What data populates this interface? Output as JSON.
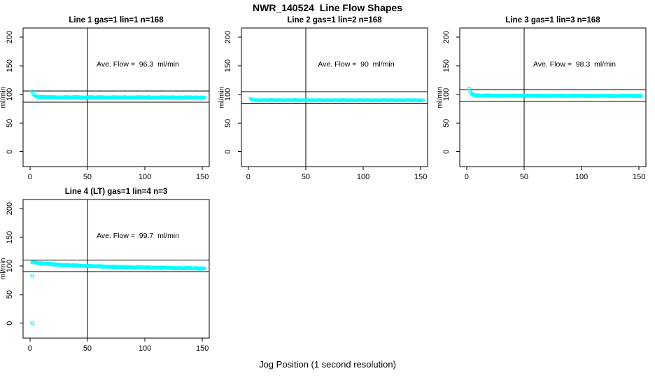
{
  "chart_data": {
    "type": "scatter",
    "title": "NWR_140524  Line Flow Shapes",
    "xlabel": "Jog Position (1 second resolution)",
    "ylabel": "ml/min",
    "x_ticks": [
      0,
      50,
      100,
      150
    ],
    "y_ticks": [
      0,
      50,
      100,
      150,
      200
    ],
    "xlim": [
      -6,
      156
    ],
    "ylim": [
      -26,
      216
    ],
    "vline_x": 50,
    "point_color": "#00FFFF",
    "line_color": "#000000",
    "grid": "off",
    "legend": "none",
    "panels": [
      {
        "title": "Line 1 gas=1 lin=1 n=168",
        "annotation": "Ave. Flow =  96.3  ml/min",
        "ave_flow_ml_min": 96.3,
        "n_jogs": 168,
        "ref_lines": [
          106,
          86.5
        ],
        "x_start": 2,
        "x_end": 152,
        "layers": 3,
        "jitter": 0.8,
        "profile": [
          [
            2,
            105
          ],
          [
            3,
            100.5
          ],
          [
            4,
            98.3
          ],
          [
            5,
            97.2
          ],
          [
            6,
            96.5
          ],
          [
            8,
            95.8
          ],
          [
            12,
            95.3
          ],
          [
            20,
            95.0
          ],
          [
            50,
            94.8
          ],
          [
            100,
            94.7
          ],
          [
            152,
            94.5
          ]
        ],
        "outliers": []
      },
      {
        "title": "Line 2 gas=1 lin=2 n=168",
        "annotation": "Ave. Flow =  90  ml/min",
        "ave_flow_ml_min": 90,
        "n_jogs": 168,
        "ref_lines": [
          105,
          84.5
        ],
        "x_start": 2,
        "x_end": 152,
        "layers": 2,
        "jitter": 0.55,
        "profile": [
          [
            2,
            92.5
          ],
          [
            3,
            91.2
          ],
          [
            4,
            90.5
          ],
          [
            6,
            90.1
          ],
          [
            10,
            90.0
          ],
          [
            80,
            89.9
          ],
          [
            152,
            89.8
          ]
        ],
        "outliers": []
      },
      {
        "title": "Line 3 gas=1 lin=3 n=168",
        "annotation": "Ave. Flow =  98.3  ml/min",
        "ave_flow_ml_min": 98.3,
        "n_jogs": 168,
        "ref_lines": [
          108.5,
          88.5
        ],
        "x_start": 2,
        "x_end": 152,
        "layers": 3,
        "jitter": 0.8,
        "profile": [
          [
            2,
            110
          ],
          [
            3,
            105.5
          ],
          [
            4,
            102
          ],
          [
            5,
            100.3
          ],
          [
            6,
            99.3
          ],
          [
            8,
            98.5
          ],
          [
            12,
            98.0
          ],
          [
            30,
            97.7
          ],
          [
            80,
            97.5
          ],
          [
            152,
            97.4
          ]
        ],
        "outliers": []
      },
      {
        "title": "Line 4 (LT) gas=1 lin=4 n=3",
        "annotation": "Ave. Flow =  99.7  ml/min",
        "ave_flow_ml_min": 99.7,
        "n_jogs": 3,
        "ref_lines": [
          110,
          90
        ],
        "x_start": 2,
        "x_end": 152,
        "layers": 3,
        "jitter": 1.0,
        "profile": [
          [
            2,
            106.5
          ],
          [
            5,
            105.8
          ],
          [
            10,
            104.5
          ],
          [
            20,
            102.8
          ],
          [
            35,
            101.0
          ],
          [
            55,
            99.5
          ],
          [
            80,
            98.0
          ],
          [
            110,
            96.8
          ],
          [
            130,
            96.2
          ],
          [
            152,
            95.6
          ]
        ],
        "outliers": [
          [
            2,
            83
          ],
          [
            2,
            0
          ]
        ]
      }
    ]
  }
}
